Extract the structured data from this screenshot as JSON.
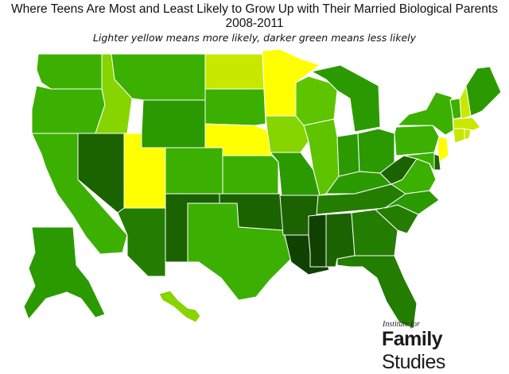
{
  "title_line1": "Where Teens Are Most and Least Likely to Grow Up with Their Married Biological Parents",
  "title_line2": "2008-2011",
  "subtitle": "Lighter yellow means more likely, darker green means less likely",
  "logo": {
    "top": "Institute for",
    "bold": "Family",
    "light": "Studies"
  },
  "colors": {
    "yellow": "#ffff00",
    "yellow_green": "#c8e800",
    "light_green": "#86d400",
    "mid_light_green": "#5ec400",
    "mid_green": "#3cb000",
    "green": "#2b9a00",
    "medium_dark_green": "#237d00",
    "dark_green": "#1a6300",
    "darkest_green": "#0f4200"
  },
  "states": {
    "WA": "mid_green",
    "OR": "mid_green",
    "CA": "mid_green",
    "ID": "light_green",
    "NV": "dark_green",
    "UT": "yellow",
    "AZ": "medium_dark_green",
    "MT": "mid_green",
    "WY": "green",
    "CO": "mid_green",
    "NM": "dark_green",
    "ND": "yellow_green",
    "SD": "mid_green",
    "NE": "yellow",
    "KS": "mid_green",
    "OK": "dark_green",
    "TX": "mid_green",
    "MN": "yellow",
    "IA": "light_green",
    "MO": "green",
    "AR": "dark_green",
    "LA": "darkest_green",
    "WI": "mid_light_green",
    "IL": "mid_light_green",
    "MI": "green",
    "IN": "green",
    "OH": "green",
    "KY": "green",
    "TN": "medium_dark_green",
    "MS": "darkest_green",
    "AL": "dark_green",
    "GA": "medium_dark_green",
    "FL": "medium_dark_green",
    "SC": "medium_dark_green",
    "NC": "green",
    "VA": "mid_green",
    "WV": "dark_green",
    "PA": "mid_green",
    "NY": "mid_green",
    "VT": "mid_green",
    "NH": "yellow_green",
    "ME": "green",
    "MA": "yellow_green",
    "CT": "yellow_green",
    "RI": "yellow_green",
    "NJ": "yellow",
    "DE": "dark_green",
    "MD": "mid_green",
    "AK": "green",
    "HI": "light_green"
  }
}
